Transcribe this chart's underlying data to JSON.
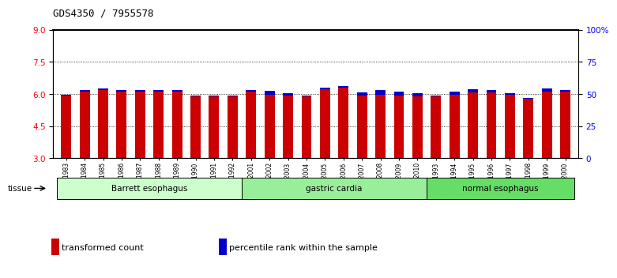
{
  "title": "GDS4350 / 7955578",
  "samples": [
    "GSM851983",
    "GSM851984",
    "GSM851985",
    "GSM851986",
    "GSM851987",
    "GSM851988",
    "GSM851989",
    "GSM851990",
    "GSM851991",
    "GSM851992",
    "GSM852001",
    "GSM852002",
    "GSM852003",
    "GSM852004",
    "GSM852005",
    "GSM852006",
    "GSM852007",
    "GSM852008",
    "GSM852009",
    "GSM852010",
    "GSM851993",
    "GSM851994",
    "GSM851995",
    "GSM851996",
    "GSM851997",
    "GSM851998",
    "GSM851999",
    "GSM852000"
  ],
  "red_values": [
    5.92,
    6.12,
    6.18,
    6.12,
    6.12,
    6.12,
    6.12,
    5.88,
    5.88,
    5.88,
    6.12,
    5.97,
    5.92,
    5.88,
    6.22,
    6.28,
    5.92,
    5.97,
    5.92,
    5.88,
    5.88,
    5.97,
    6.07,
    6.07,
    5.95,
    5.77,
    6.12,
    6.12
  ],
  "blue_values": [
    5.97,
    6.2,
    6.25,
    6.2,
    6.2,
    6.2,
    6.2,
    5.93,
    5.92,
    5.92,
    6.2,
    6.15,
    6.03,
    5.92,
    6.3,
    6.38,
    6.08,
    6.17,
    6.1,
    6.05,
    5.93,
    6.12,
    6.22,
    6.2,
    6.02,
    5.83,
    6.25,
    6.2
  ],
  "groups": [
    {
      "label": "Barrett esophagus",
      "start": 0,
      "end": 10,
      "color": "#ccffcc"
    },
    {
      "label": "gastric cardia",
      "start": 10,
      "end": 20,
      "color": "#99ee99"
    },
    {
      "label": "normal esophagus",
      "start": 20,
      "end": 28,
      "color": "#66dd66"
    }
  ],
  "ymin": 3,
  "ymax": 9,
  "yticks_left": [
    3,
    4.5,
    6,
    7.5,
    9
  ],
  "yticks_right_pct": [
    0,
    25,
    50,
    75,
    100
  ],
  "yticks_right_labels": [
    "0",
    "25",
    "50",
    "75",
    "100%"
  ],
  "gridlines": [
    4.5,
    6,
    7.5
  ],
  "bar_color_red": "#cc0000",
  "bar_color_blue": "#0000cc",
  "bar_bottom": 3,
  "bar_width": 0.55,
  "legend_items": [
    {
      "color": "#cc0000",
      "label": "transformed count"
    },
    {
      "color": "#0000cc",
      "label": "percentile rank within the sample"
    }
  ],
  "tissue_label": "tissue",
  "fig_bg_color": "#ffffff"
}
